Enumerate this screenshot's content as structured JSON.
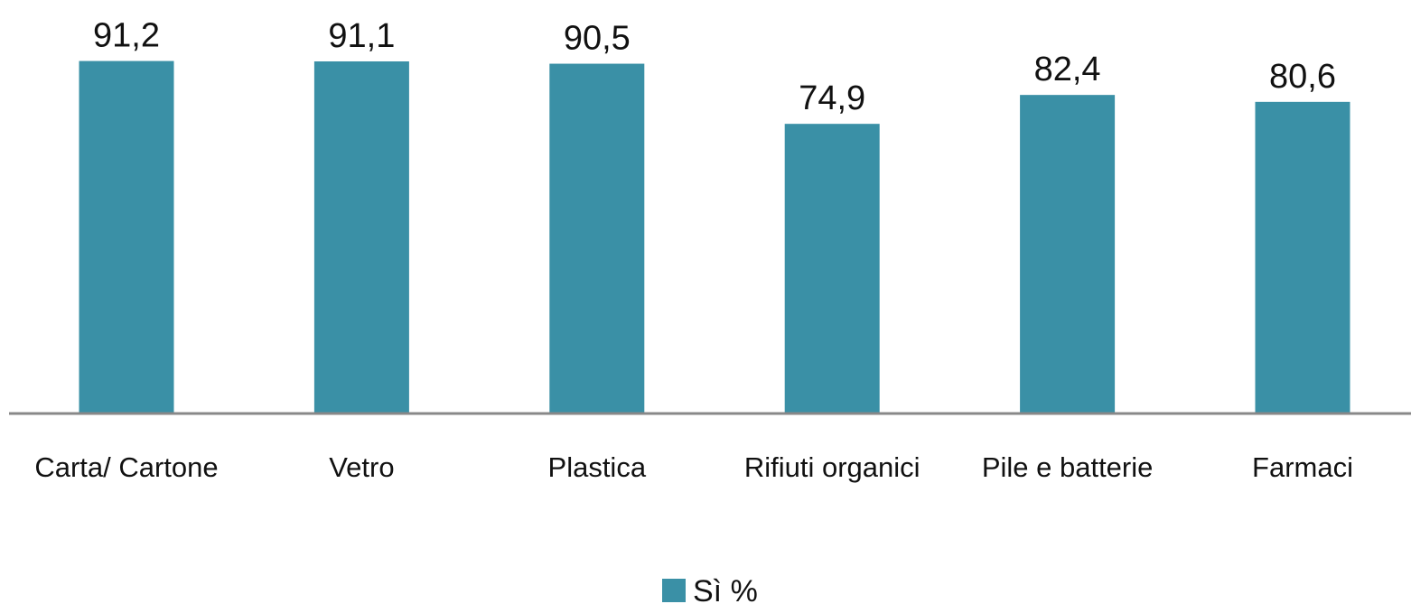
{
  "chart_data": {
    "type": "bar",
    "categories": [
      "Carta/ Cartone",
      "Vetro",
      "Plastica",
      "Rifiuti organici",
      "Pile e batterie",
      "Farmaci"
    ],
    "series": [
      {
        "name": "Sì %",
        "values": [
          91.2,
          91.1,
          90.5,
          74.9,
          82.4,
          80.6
        ],
        "labels": [
          "91,2",
          "91,1",
          "90,5",
          "74,9",
          "82,4",
          "80,6"
        ]
      }
    ],
    "ylim": [
      0,
      100
    ],
    "grid": false,
    "legend_position": "bottom-center",
    "bar_color": "#3a90a6",
    "axis_color": "#888888"
  }
}
